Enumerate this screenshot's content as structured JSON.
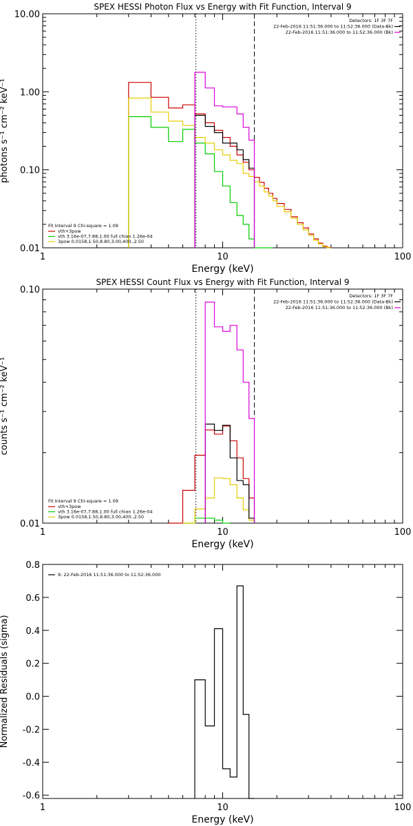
{
  "chart_data": [
    {
      "type": "line",
      "title": "SPEX HESSI Photon Flux vs Energy with Fit Function, Interval 9",
      "xlabel": "Energy (keV)",
      "ylabel": "photons s⁻¹ cm⁻² keV⁻¹",
      "xscale": "log",
      "yscale": "log",
      "xlim": [
        1,
        100
      ],
      "ylim": [
        0.01,
        10
      ],
      "x_ticks": [
        "1",
        "10",
        "100"
      ],
      "y_ticks": [
        "0.01",
        "0.10",
        "1.00",
        "10.00"
      ],
      "vlines": [
        {
          "x": 7.1,
          "style": "dotted",
          "color": "#000000"
        },
        {
          "x": 15.0,
          "style": "dashed",
          "color": "#000000"
        }
      ],
      "info_lines": [
        "Detectors: 1F 3F 7F",
        "22-Feb-2016 11:51:36.000 to 11:52:36.000 (Data-Bk)",
        "22-Feb-2016 11:51:36.000 to 11:52:36.000 (Bk)"
      ],
      "legend_title": "Fit Interval 9   Chi-square = 1.09",
      "legend": [
        {
          "label": "vth+3pow",
          "color": "#cc0000"
        },
        {
          "label": "vth 3.16e-07,7.88,1.00  full chian 1.26e-04",
          "color": "#00cc00"
        },
        {
          "label": "3pow 0.0158,1.50,8.80,3.00,400.,2.50",
          "color": "#e6cc00"
        }
      ],
      "edges": [
        3.0,
        3.5,
        4.0,
        4.5,
        5.0,
        5.5,
        6.0,
        6.5,
        7.0,
        7.5,
        8.0,
        8.5,
        9.0,
        9.5,
        10.0,
        11.0,
        12.0,
        13.0,
        14.0,
        15.0,
        16.0,
        17.0,
        18.0,
        19.0,
        20.0,
        22.0,
        24.0,
        26.0,
        28.0,
        30.0,
        32.0,
        34.0,
        36.0,
        38.0,
        40.0
      ],
      "series": [
        {
          "color": "#cc0000",
          "range": [
            0,
            34
          ],
          "values": [
            1.32,
            1.32,
            0.85,
            0.85,
            0.62,
            0.62,
            0.68,
            0.68,
            0.52,
            0.52,
            0.4,
            0.4,
            0.32,
            0.32,
            0.26,
            0.2,
            0.155,
            0.125,
            0.1,
            0.08,
            0.069,
            0.058,
            0.05,
            0.043,
            0.037,
            0.031,
            0.025,
            0.021,
            0.018,
            0.015,
            0.013,
            0.0115,
            0.0105,
            0.0101
          ]
        },
        {
          "color": "#00cc00",
          "range": [
            0,
            23
          ],
          "values": [
            0.48,
            0.48,
            0.35,
            0.35,
            0.23,
            0.23,
            0.33,
            0.33,
            0.22,
            0.22,
            0.16,
            0.16,
            0.095,
            0.095,
            0.062,
            0.038,
            0.026,
            0.02,
            0.013,
            0.0098,
            0.0098,
            0.0098,
            0.0098
          ]
        },
        {
          "color": "#e6cc00",
          "range": [
            0,
            34
          ],
          "values": [
            0.83,
            0.83,
            0.55,
            0.55,
            0.42,
            0.42,
            0.37,
            0.37,
            0.26,
            0.26,
            0.22,
            0.22,
            0.18,
            0.18,
            0.155,
            0.132,
            0.12,
            0.09,
            0.082,
            0.07,
            0.062,
            0.052,
            0.046,
            0.04,
            0.034,
            0.029,
            0.024,
            0.02,
            0.017,
            0.0145,
            0.0125,
            0.0112,
            0.0103,
            0.0099
          ]
        },
        {
          "color": "#000000",
          "range": [
            8,
            19
          ],
          "values": [
            0.5,
            0.5,
            0.36,
            0.36,
            0.3,
            0.3,
            0.22,
            0.22,
            0.18,
            0.135,
            0.105
          ]
        },
        {
          "color": "#dd00dd",
          "range": [
            8,
            19
          ],
          "values": [
            1.78,
            1.78,
            1.12,
            1.12,
            0.66,
            0.66,
            0.64,
            0.64,
            0.52,
            0.35,
            0.24
          ]
        }
      ]
    },
    {
      "type": "line",
      "title": "SPEX HESSI Count Flux vs Energy with Fit Function, Interval 9",
      "xlabel": "Energy (keV)",
      "ylabel": "counts s⁻¹ cm⁻² keV⁻¹",
      "xscale": "log",
      "yscale": "log",
      "xlim": [
        1,
        100
      ],
      "ylim": [
        0.01,
        0.1
      ],
      "x_ticks": [
        "1",
        "10",
        "100"
      ],
      "y_ticks": [
        "0.01",
        "0.10"
      ],
      "vlines": [
        {
          "x": 7.1,
          "style": "dotted",
          "color": "#000000"
        },
        {
          "x": 15.0,
          "style": "dashed",
          "color": "#000000"
        }
      ],
      "info_lines": [
        "Detectors: 1F 3F 7F",
        "22-Feb-2016 11:51:36.000 to 11:52:36.000 (Data-Bk)",
        "22-Feb-2016 11:51:36.000 to 11:52:36.000 (Bk)"
      ],
      "legend_title": "Fit Interval 9   Chi-square = 1.09",
      "legend": [
        {
          "label": "vth+3pow",
          "color": "#cc0000"
        },
        {
          "label": "vth 3.16e-07,7.88,1.00  full chian 1.26e-04",
          "color": "#00cc00"
        },
        {
          "label": "3pow 0.0158,1.50,8.80,3.00,400.,2.50",
          "color": "#e6cc00"
        }
      ],
      "edges": [
        5.0,
        6.0,
        7.0,
        8.0,
        9.0,
        10.0,
        11.0,
        12.0,
        13.0,
        14.0,
        15.0
      ],
      "series": [
        {
          "color": "#cc0000",
          "range": [
            0,
            10
          ],
          "values": [
            0.0098,
            0.0138,
            0.0195,
            0.025,
            0.024,
            0.026,
            0.0225,
            0.019,
            0.0155,
            0.0128
          ]
        },
        {
          "color": "#00cc00",
          "range": [
            1,
            6
          ],
          "values": [
            0.0098,
            0.0105,
            0.0105,
            0.0103,
            0.0098
          ]
        },
        {
          "color": "#e6cc00",
          "range": [
            1,
            10
          ],
          "values": [
            0.0098,
            0.0115,
            0.0128,
            0.0156,
            0.0155,
            0.0146,
            0.0128,
            0.0114,
            0.0103
          ]
        },
        {
          "color": "#000000",
          "range": [
            3,
            10
          ],
          "values": [
            0.0265,
            0.0249,
            0.0262,
            0.019,
            0.0152,
            0.0146,
            0.0105
          ]
        },
        {
          "color": "#dd00dd",
          "range": [
            3,
            10
          ],
          "values": [
            0.088,
            0.069,
            0.066,
            0.07,
            0.055,
            0.04,
            0.028
          ]
        }
      ]
    },
    {
      "type": "line",
      "title": "",
      "xlabel": "Energy (keV)",
      "ylabel": "Normalized Residuals (sigma)",
      "xscale": "log",
      "yscale": "linear",
      "xlim": [
        1,
        100
      ],
      "ylim": [
        -0.62,
        0.8
      ],
      "x_ticks": [
        "1",
        "10",
        "100"
      ],
      "y_ticks": [
        "-0.6",
        "-0.4",
        "-0.2",
        "0.0",
        "0.2",
        "0.4",
        "0.6",
        "0.8"
      ],
      "y_tick_values": [
        -0.6,
        -0.4,
        -0.2,
        0.0,
        0.2,
        0.4,
        0.6,
        0.8
      ],
      "info_lines": [],
      "legend_title": "",
      "legend": [
        {
          "label": "9: 22-Feb-2016 11:51:36.000 to 11:52:36.000",
          "color": "#000000"
        }
      ],
      "edges": [
        7.0,
        8.0,
        9.0,
        10.0,
        11.0,
        12.0,
        13.0,
        14.0,
        15.0
      ],
      "series": [
        {
          "color": "#000000",
          "range": [
            0,
            8
          ],
          "values": [
            0.1,
            -0.18,
            0.41,
            -0.44,
            -0.49,
            0.67,
            -0.11,
            -0.62
          ]
        }
      ]
    }
  ]
}
